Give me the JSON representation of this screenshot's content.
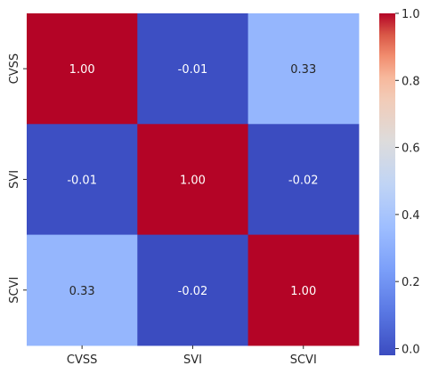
{
  "chart_data": {
    "type": "heatmap",
    "title": "",
    "xlabel": "",
    "ylabel": "",
    "x_categories": [
      "CVSS",
      "SVI",
      "SCVI"
    ],
    "y_categories": [
      "CVSS",
      "SVI",
      "SCVI"
    ],
    "matrix": [
      [
        1.0,
        -0.01,
        0.33
      ],
      [
        -0.01,
        1.0,
        -0.02
      ],
      [
        0.33,
        -0.02,
        1.0
      ]
    ],
    "cell_labels": [
      [
        "1.00",
        "-0.01",
        "0.33"
      ],
      [
        "-0.01",
        "1.00",
        "-0.02"
      ],
      [
        "0.33",
        "-0.02",
        "1.00"
      ]
    ],
    "colormap": "coolwarm",
    "colorbar": {
      "range": [
        -0.02,
        1.0
      ],
      "ticks": [
        0.0,
        0.2,
        0.4,
        0.6,
        0.8,
        1.0
      ],
      "tick_labels": [
        "0.0",
        "0.2",
        "0.4",
        "0.6",
        "0.8",
        "1.0"
      ]
    },
    "colors": {
      "low": "#3b4cc0",
      "high": "#b40426",
      "cell_0.33": "#bcd2f7"
    }
  }
}
